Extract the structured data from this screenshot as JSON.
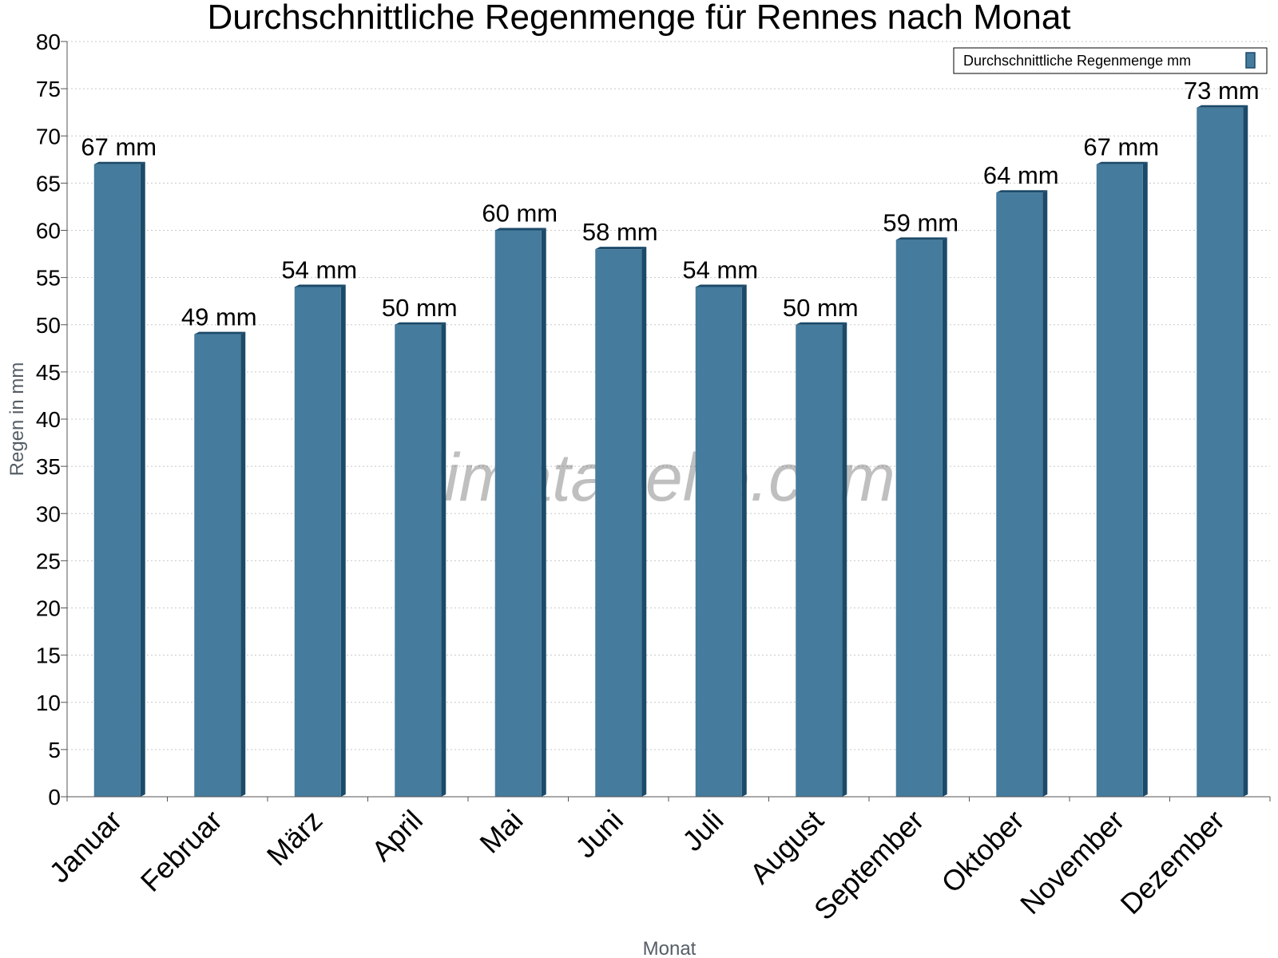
{
  "chart_data": {
    "type": "bar",
    "title": "Durchschnittliche Regenmenge für Rennes nach Monat",
    "xlabel": "Monat",
    "ylabel": "Regen in mm",
    "categories": [
      "Januar",
      "Februar",
      "März",
      "April",
      "Mai",
      "Juni",
      "Juli",
      "August",
      "September",
      "Oktober",
      "November",
      "Dezember"
    ],
    "series": [
      {
        "name": "Durchschnittliche Regenmenge mm",
        "values": [
          67,
          49,
          54,
          50,
          60,
          58,
          54,
          50,
          59,
          64,
          67,
          73
        ],
        "labels": [
          "67 mm",
          "49 mm",
          "54 mm",
          "50 mm",
          "60 mm",
          "58 mm",
          "54 mm",
          "50 mm",
          "59 mm",
          "64 mm",
          "67 mm",
          "73 mm"
        ],
        "color": "#457b9d"
      }
    ],
    "ylim": [
      0,
      80
    ],
    "ytick_step": 5,
    "grid": true,
    "legend": "top-right",
    "watermark": "klimatabelle.com"
  }
}
